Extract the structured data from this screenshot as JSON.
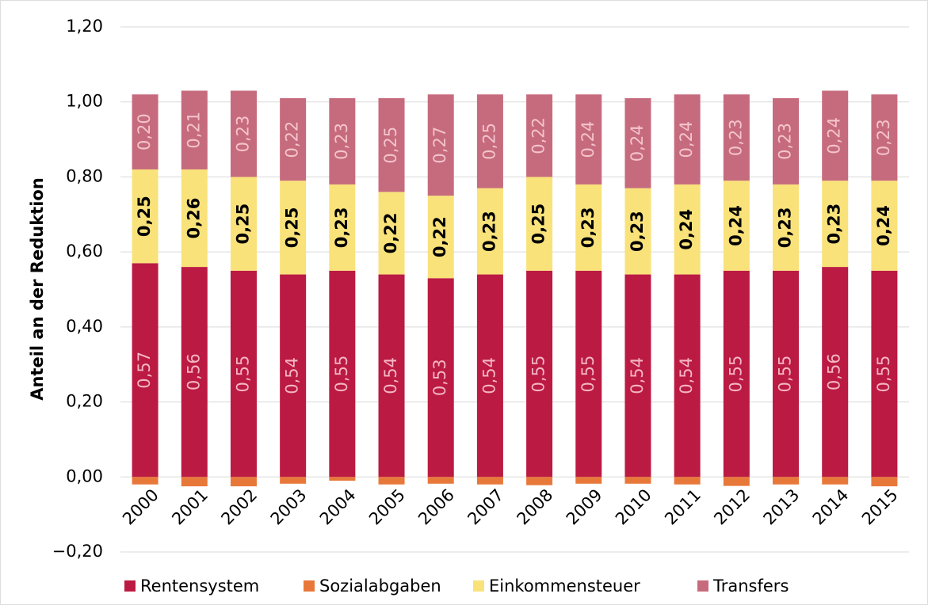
{
  "chart_data": {
    "type": "stacked_bar",
    "y_label": "Anteil an der Reduktion",
    "categories": [
      "2000",
      "2001",
      "2002",
      "2003",
      "2004",
      "2005",
      "2006",
      "2007",
      "2008",
      "2009",
      "2010",
      "2011",
      "2012",
      "2013",
      "2014",
      "2015"
    ],
    "series": [
      {
        "name": "Rentensystem",
        "color": "#bb1a43",
        "label_color": "#f4b6c4",
        "values": [
          0.57,
          0.56,
          0.55,
          0.54,
          0.55,
          0.54,
          0.53,
          0.54,
          0.55,
          0.55,
          0.54,
          0.54,
          0.55,
          0.55,
          0.56,
          0.55
        ],
        "value_labels": [
          "0,57",
          "0,56",
          "0,55",
          "0,54",
          "0,55",
          "0,54",
          "0,53",
          "0,54",
          "0,55",
          "0,55",
          "0,54",
          "0,54",
          "0,55",
          "0,55",
          "0,56",
          "0,55"
        ]
      },
      {
        "name": "Sozialabgaben",
        "color": "#e8783a",
        "values": [
          -0.02,
          -0.025,
          -0.025,
          -0.018,
          -0.01,
          -0.02,
          -0.018,
          -0.02,
          -0.022,
          -0.018,
          -0.018,
          -0.02,
          -0.024,
          -0.02,
          -0.02,
          -0.025
        ]
      },
      {
        "name": "Einkommensteuer",
        "color": "#f9e27a",
        "label_color": "#000000",
        "values": [
          0.25,
          0.26,
          0.25,
          0.25,
          0.23,
          0.22,
          0.22,
          0.23,
          0.25,
          0.23,
          0.23,
          0.24,
          0.24,
          0.23,
          0.23,
          0.24
        ],
        "value_labels": [
          "0,25",
          "0,26",
          "0,25",
          "0,25",
          "0,23",
          "0,22",
          "0,22",
          "0,23",
          "0,25",
          "0,23",
          "0,23",
          "0,24",
          "0,24",
          "0,23",
          "0,23",
          "0,24"
        ]
      },
      {
        "name": "Transfers",
        "color": "#c66b7d",
        "label_color": "#f4c4ce",
        "values": [
          0.2,
          0.21,
          0.23,
          0.22,
          0.23,
          0.25,
          0.27,
          0.25,
          0.22,
          0.24,
          0.24,
          0.24,
          0.23,
          0.23,
          0.24,
          0.23
        ],
        "value_labels": [
          "0,20",
          "0,21",
          "0,23",
          "0,22",
          "0,23",
          "0,25",
          "0,27",
          "0,25",
          "0,22",
          "0,24",
          "0,24",
          "0,24",
          "0,23",
          "0,23",
          "0,24",
          "0,23"
        ]
      }
    ],
    "ylim": [
      -0.2,
      1.2
    ],
    "yticks": [
      {
        "value": -0.2,
        "label": "−0,20"
      },
      {
        "value": 0,
        "label": "0,00"
      },
      {
        "value": 0.2,
        "label": "0,20"
      },
      {
        "value": 0.4,
        "label": "0,40"
      },
      {
        "value": 0.6,
        "label": "0,60"
      },
      {
        "value": 0.8,
        "label": "0,80"
      },
      {
        "value": 1.0,
        "label": "1,00"
      },
      {
        "value": 1.2,
        "label": "1,20"
      }
    ],
    "grid": true,
    "legend": "bottom"
  }
}
